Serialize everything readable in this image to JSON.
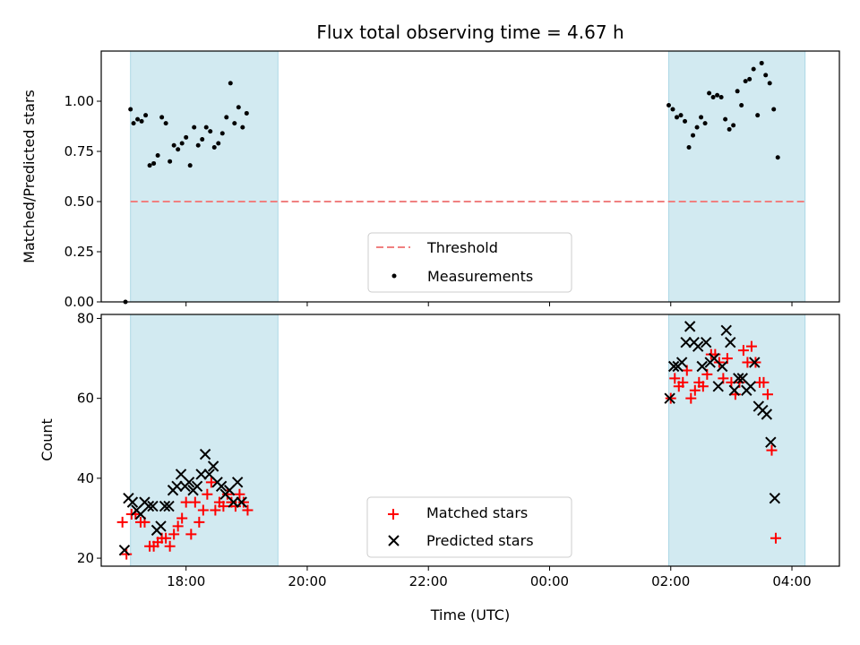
{
  "chart_data": [
    {
      "type": "scatter",
      "title": "Flux total observing time = 4.67 h",
      "xlabel": "",
      "ylabel": "Matched/Predicted stars",
      "xlim": [
        "16:36",
        "04:47"
      ],
      "ylim": [
        0,
        1.25
      ],
      "yticks": [
        "0.00",
        "0.25",
        "0.50",
        "0.75",
        "1.00"
      ],
      "xticks": [
        "18:00",
        "20:00",
        "22:00",
        "00:00",
        "02:00",
        "04:00"
      ],
      "shaded_spans": [
        [
          "17:05",
          "19:31"
        ],
        [
          "01:58",
          "04:13"
        ]
      ],
      "shade_color": "#add8e6",
      "threshold": {
        "name": "Threshold",
        "y": 0.5,
        "x_range": [
          "17:05",
          "04:13"
        ],
        "color": "#f08080",
        "style": "dashed"
      },
      "legend": {
        "placement": "lower-center",
        "entries": [
          "Threshold",
          "Measurements"
        ]
      },
      "series": [
        {
          "name": "Measurements",
          "color": "#000000",
          "marker": "dot",
          "points": [
            [
              "17:00",
              0.0
            ],
            [
              "17:05",
              0.96
            ],
            [
              "17:08",
              0.89
            ],
            [
              "17:12",
              0.91
            ],
            [
              "17:16",
              0.9
            ],
            [
              "17:20",
              0.93
            ],
            [
              "17:24",
              0.68
            ],
            [
              "17:28",
              0.69
            ],
            [
              "17:32",
              0.73
            ],
            [
              "17:36",
              0.92
            ],
            [
              "17:40",
              0.89
            ],
            [
              "17:44",
              0.7
            ],
            [
              "17:48",
              0.78
            ],
            [
              "17:52",
              0.76
            ],
            [
              "17:56",
              0.79
            ],
            [
              "18:00",
              0.82
            ],
            [
              "18:04",
              0.68
            ],
            [
              "18:08",
              0.87
            ],
            [
              "18:12",
              0.78
            ],
            [
              "18:16",
              0.81
            ],
            [
              "18:20",
              0.87
            ],
            [
              "18:24",
              0.85
            ],
            [
              "18:28",
              0.77
            ],
            [
              "18:32",
              0.79
            ],
            [
              "18:36",
              0.84
            ],
            [
              "18:40",
              0.92
            ],
            [
              "18:44",
              1.09
            ],
            [
              "18:48",
              0.89
            ],
            [
              "18:52",
              0.97
            ],
            [
              "18:56",
              0.87
            ],
            [
              "19:00",
              0.94
            ],
            [
              "01:58",
              0.98
            ],
            [
              "02:02",
              0.96
            ],
            [
              "02:06",
              0.92
            ],
            [
              "02:10",
              0.93
            ],
            [
              "02:14",
              0.9
            ],
            [
              "02:18",
              0.77
            ],
            [
              "02:22",
              0.83
            ],
            [
              "02:26",
              0.87
            ],
            [
              "02:30",
              0.92
            ],
            [
              "02:34",
              0.89
            ],
            [
              "02:38",
              1.04
            ],
            [
              "02:42",
              1.02
            ],
            [
              "02:46",
              1.03
            ],
            [
              "02:50",
              1.02
            ],
            [
              "02:54",
              0.91
            ],
            [
              "02:58",
              0.86
            ],
            [
              "03:02",
              0.88
            ],
            [
              "03:06",
              1.05
            ],
            [
              "03:10",
              0.98
            ],
            [
              "03:14",
              1.1
            ],
            [
              "03:18",
              1.11
            ],
            [
              "03:22",
              1.16
            ],
            [
              "03:26",
              0.93
            ],
            [
              "03:30",
              1.19
            ],
            [
              "03:34",
              1.13
            ],
            [
              "03:38",
              1.09
            ],
            [
              "03:42",
              0.96
            ],
            [
              "03:46",
              0.72
            ]
          ]
        }
      ]
    },
    {
      "type": "scatter",
      "title": "",
      "xlabel": "Time (UTC)",
      "ylabel": "Count",
      "xlim": [
        "16:36",
        "04:47"
      ],
      "ylim": [
        18,
        81
      ],
      "yticks": [
        "20",
        "40",
        "60",
        "80"
      ],
      "xticks": [
        "18:00",
        "20:00",
        "22:00",
        "00:00",
        "02:00",
        "04:00"
      ],
      "shaded_spans": [
        [
          "17:05",
          "19:31"
        ],
        [
          "01:58",
          "04:13"
        ]
      ],
      "shade_color": "#add8e6",
      "legend": {
        "placement": "lower-center",
        "entries": [
          "Matched stars",
          "Predicted stars"
        ]
      },
      "series": [
        {
          "name": "Matched stars",
          "color": "#ff0000",
          "marker": "plus",
          "points": [
            [
              "16:57",
              29
            ],
            [
              "17:01",
              21
            ],
            [
              "17:06",
              31
            ],
            [
              "17:10",
              31
            ],
            [
              "17:15",
              29
            ],
            [
              "17:19",
              29
            ],
            [
              "17:24",
              23
            ],
            [
              "17:28",
              23
            ],
            [
              "17:32",
              24
            ],
            [
              "17:36",
              25
            ],
            [
              "17:40",
              25
            ],
            [
              "17:44",
              23
            ],
            [
              "17:48",
              26
            ],
            [
              "17:52",
              28
            ],
            [
              "17:56",
              30
            ],
            [
              "18:00",
              34
            ],
            [
              "18:05",
              26
            ],
            [
              "18:09",
              34
            ],
            [
              "18:13",
              29
            ],
            [
              "18:17",
              32
            ],
            [
              "18:21",
              36
            ],
            [
              "18:25",
              39
            ],
            [
              "18:29",
              32
            ],
            [
              "18:33",
              34
            ],
            [
              "18:37",
              33
            ],
            [
              "18:41",
              36
            ],
            [
              "18:45",
              34
            ],
            [
              "18:49",
              33
            ],
            [
              "18:53",
              36
            ],
            [
              "18:57",
              34
            ],
            [
              "19:01",
              32
            ],
            [
              "02:00",
              60
            ],
            [
              "02:04",
              65
            ],
            [
              "02:08",
              63
            ],
            [
              "02:12",
              64
            ],
            [
              "02:16",
              67
            ],
            [
              "02:20",
              60
            ],
            [
              "02:24",
              62
            ],
            [
              "02:28",
              64
            ],
            [
              "02:32",
              63
            ],
            [
              "02:36",
              66
            ],
            [
              "02:40",
              71
            ],
            [
              "02:44",
              71
            ],
            [
              "02:48",
              69
            ],
            [
              "02:52",
              65
            ],
            [
              "02:56",
              70
            ],
            [
              "03:00",
              64
            ],
            [
              "03:04",
              61
            ],
            [
              "03:08",
              64
            ],
            [
              "03:12",
              72
            ],
            [
              "03:16",
              69
            ],
            [
              "03:20",
              73
            ],
            [
              "03:24",
              69
            ],
            [
              "03:28",
              64
            ],
            [
              "03:32",
              64
            ],
            [
              "03:36",
              61
            ],
            [
              "03:40",
              47
            ],
            [
              "03:44",
              25
            ]
          ]
        },
        {
          "name": "Predicted stars",
          "color": "#000000",
          "marker": "x",
          "points": [
            [
              "16:59",
              22
            ],
            [
              "17:03",
              35
            ],
            [
              "17:07",
              34
            ],
            [
              "17:11",
              32
            ],
            [
              "17:15",
              31
            ],
            [
              "17:19",
              34
            ],
            [
              "17:23",
              33
            ],
            [
              "17:27",
              33
            ],
            [
              "17:31",
              27
            ],
            [
              "17:35",
              28
            ],
            [
              "17:39",
              33
            ],
            [
              "17:43",
              33
            ],
            [
              "17:47",
              37
            ],
            [
              "17:51",
              38
            ],
            [
              "17:55",
              41
            ],
            [
              "17:59",
              38
            ],
            [
              "18:03",
              39
            ],
            [
              "18:07",
              37
            ],
            [
              "18:11",
              38
            ],
            [
              "18:15",
              41
            ],
            [
              "18:19",
              46
            ],
            [
              "18:23",
              41
            ],
            [
              "18:27",
              43
            ],
            [
              "18:31",
              39
            ],
            [
              "18:35",
              38
            ],
            [
              "18:39",
              36
            ],
            [
              "18:43",
              37
            ],
            [
              "18:47",
              34
            ],
            [
              "18:51",
              39
            ],
            [
              "18:55",
              34
            ],
            [
              "01:59",
              60
            ],
            [
              "02:03",
              68
            ],
            [
              "02:07",
              68
            ],
            [
              "02:11",
              69
            ],
            [
              "02:15",
              74
            ],
            [
              "02:19",
              78
            ],
            [
              "02:23",
              74
            ],
            [
              "02:27",
              73
            ],
            [
              "02:31",
              68
            ],
            [
              "02:35",
              74
            ],
            [
              "02:39",
              69
            ],
            [
              "02:43",
              70
            ],
            [
              "02:47",
              63
            ],
            [
              "02:51",
              68
            ],
            [
              "02:55",
              77
            ],
            [
              "02:59",
              74
            ],
            [
              "03:03",
              62
            ],
            [
              "03:07",
              65
            ],
            [
              "03:11",
              65
            ],
            [
              "03:15",
              62
            ],
            [
              "03:19",
              63
            ],
            [
              "03:23",
              69
            ],
            [
              "03:27",
              58
            ],
            [
              "03:31",
              57
            ],
            [
              "03:35",
              56
            ],
            [
              "03:39",
              49
            ],
            [
              "03:43",
              35
            ]
          ]
        }
      ]
    }
  ]
}
